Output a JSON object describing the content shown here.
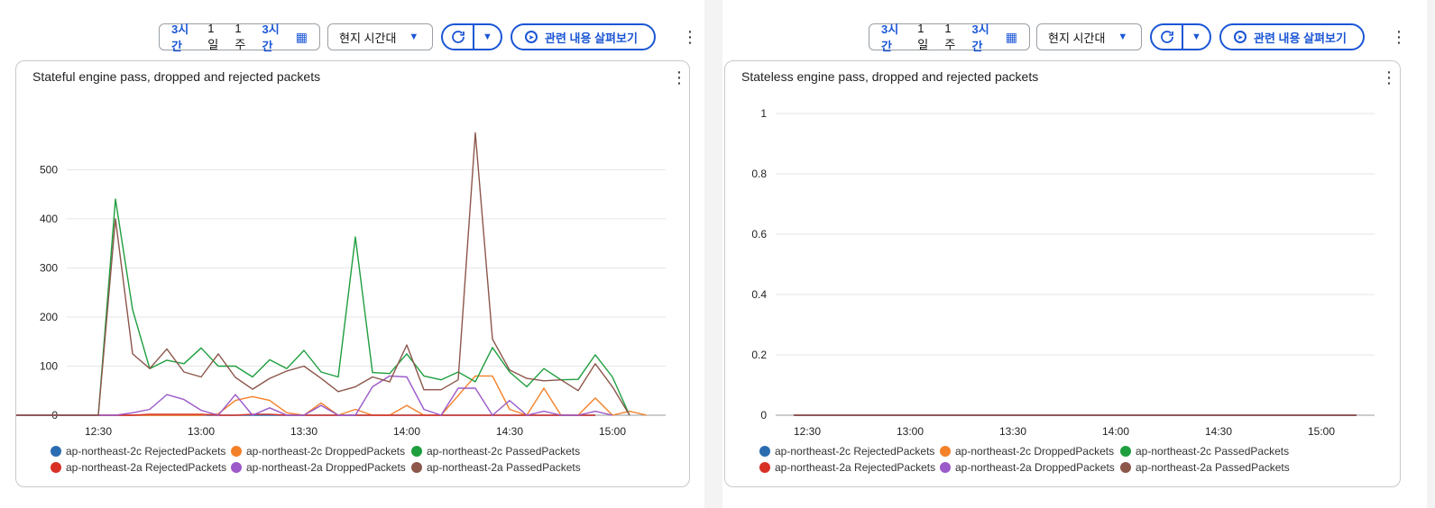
{
  "panels": [
    {
      "toolbar": {
        "range_options": [
          "3시간",
          "1일",
          "1주"
        ],
        "range_selected": "3시간",
        "timezone": "현지 시간대",
        "explore_label": "관련 내용 살펴보기"
      },
      "chart_data": {
        "type": "line",
        "title": "Stateful engine pass, dropped and rejected packets",
        "xlabel": "",
        "ylabel": "",
        "x_ticks": [
          "12:30",
          "13:00",
          "13:30",
          "14:00",
          "14:30",
          "15:00"
        ],
        "y_ticks": [
          "0",
          "100",
          "200",
          "300",
          "400",
          "500"
        ],
        "ylim": [
          0,
          620
        ],
        "x_minutes_start": 725,
        "x_minutes_step": 5,
        "series": [
          {
            "name": "ap-northeast-2c RejectedPackets",
            "color": "#2b6cb0",
            "values": [
              0,
              0,
              0,
              0,
              0,
              0,
              0,
              0,
              0,
              0,
              0,
              0,
              0,
              0,
              0,
              0,
              0,
              0,
              0,
              0,
              0,
              0,
              0,
              0,
              0,
              0,
              0,
              0,
              0,
              0,
              0,
              0,
              0,
              0,
              0,
              0,
              0,
              0,
              0,
              0,
              0,
              0,
              0,
              0,
              0,
              0,
              0,
              0
            ]
          },
          {
            "name": "ap-northeast-2c DroppedPackets",
            "color": "#f4812a",
            "values": [
              0,
              0,
              0,
              0,
              0,
              0,
              0,
              0,
              0,
              0,
              0,
              0,
              3,
              30,
              38,
              30,
              5,
              0,
              25,
              0,
              12,
              0,
              0,
              20,
              0,
              0,
              40,
              80,
              80,
              12,
              0,
              55,
              0,
              0,
              35,
              0,
              8,
              0,
              0,
              5,
              0,
              0,
              0,
              0,
              0,
              0,
              0,
              0
            ]
          },
          {
            "name": "ap-northeast-2c PassedPackets",
            "color": "#1e9e3e",
            "values": [
              0,
              0,
              0,
              0,
              0,
              0,
              440,
              215,
              95,
              112,
              105,
              137,
              100,
              100,
              78,
              113,
              95,
              132,
              88,
              78,
              363,
              87,
              85,
              125,
              80,
              72,
              88,
              68,
              138,
              88,
              58,
              95,
              72,
              73,
              123,
              78,
              0,
              0,
              0,
              0,
              0,
              0,
              0,
              0,
              0,
              0,
              0,
              0
            ]
          },
          {
            "name": "ap-northeast-2a RejectedPackets",
            "color": "#d93025",
            "values": [
              0,
              0,
              0,
              0,
              0,
              0,
              0,
              0,
              2,
              2,
              2,
              2,
              0,
              0,
              2,
              2,
              0,
              0,
              0,
              0,
              0,
              0,
              0,
              0,
              0,
              0,
              0,
              0,
              0,
              0,
              0,
              0,
              0,
              0,
              0,
              0,
              0,
              0,
              0,
              0,
              0,
              0,
              0,
              0,
              0,
              0,
              0,
              0
            ]
          },
          {
            "name": "ap-northeast-2a DroppedPackets",
            "color": "#9b59c9",
            "values": [
              0,
              0,
              0,
              0,
              0,
              0,
              0,
              5,
              12,
              42,
              32,
              10,
              0,
              42,
              0,
              15,
              0,
              0,
              20,
              0,
              0,
              58,
              80,
              78,
              12,
              0,
              55,
              55,
              0,
              30,
              0,
              8,
              0,
              0,
              8,
              0,
              0,
              0,
              0,
              0,
              0,
              0,
              0,
              0,
              0,
              0,
              0,
              0
            ]
          },
          {
            "name": "ap-northeast-2a PassedPackets",
            "color": "#8c564b",
            "values": [
              0,
              0,
              0,
              0,
              0,
              0,
              400,
              125,
              95,
              135,
              88,
              78,
              125,
              77,
              53,
              75,
              90,
              100,
              75,
              48,
              58,
              78,
              68,
              143,
              52,
              52,
              72,
              575,
              155,
              92,
              75,
              70,
              72,
              50,
              105,
              58,
              0,
              0,
              0,
              0,
              0,
              0,
              0,
              0,
              0,
              0,
              0,
              0
            ]
          }
        ],
        "grid": true,
        "legend_position": "bottom"
      }
    },
    {
      "toolbar": {
        "range_options": [
          "3시간",
          "1일",
          "1주"
        ],
        "range_selected": "3시간",
        "timezone": "현지 시간대",
        "explore_label": "관련 내용 살펴보기"
      },
      "chart_data": {
        "type": "line",
        "title": "Stateless engine pass, dropped and rejected packets",
        "xlabel": "",
        "ylabel": "",
        "x_ticks": [
          "12:30",
          "13:00",
          "13:30",
          "14:00",
          "14:30",
          "15:00"
        ],
        "y_ticks": [
          "0",
          "0.2",
          "0.4",
          "0.6",
          "0.8",
          "1"
        ],
        "ylim": [
          0,
          1
        ],
        "series": [
          {
            "name": "ap-northeast-2c RejectedPackets",
            "color": "#2b6cb0",
            "values": [
              0,
              0
            ]
          },
          {
            "name": "ap-northeast-2c DroppedPackets",
            "color": "#f4812a",
            "values": [
              0,
              0
            ]
          },
          {
            "name": "ap-northeast-2c PassedPackets",
            "color": "#1e9e3e",
            "values": [
              0,
              0
            ]
          },
          {
            "name": "ap-northeast-2a RejectedPackets",
            "color": "#d93025",
            "values": [
              0,
              0
            ]
          },
          {
            "name": "ap-northeast-2a DroppedPackets",
            "color": "#9b59c9",
            "values": [
              0,
              0
            ]
          },
          {
            "name": "ap-northeast-2a PassedPackets",
            "color": "#8c564b",
            "values": [
              0,
              0
            ]
          }
        ],
        "grid": true,
        "legend_position": "bottom"
      }
    }
  ]
}
